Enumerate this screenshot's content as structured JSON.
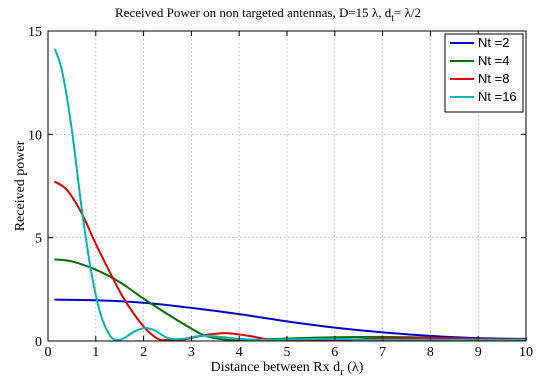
{
  "chart_data": {
    "type": "line",
    "title_main": "Received Power on non targeted antennas, D=15 λ, d",
    "title_sub": "t",
    "title_tail": "= λ/2",
    "xlabel_main": "Distance between Rx d",
    "xlabel_sub": "r",
    "xlabel_tail": " (λ)",
    "ylabel": "Received power",
    "xlim": [
      0,
      10
    ],
    "ylim": [
      0,
      15
    ],
    "xticks": [
      "0",
      "1",
      "2",
      "3",
      "4",
      "5",
      "6",
      "7",
      "8",
      "9",
      "10"
    ],
    "yticks": [
      "0",
      "5",
      "10",
      "15"
    ],
    "grid": true,
    "legend_position": "top-right",
    "series": [
      {
        "name": "Nt =2",
        "color": "#0000c8",
        "x": [
          0.15,
          1,
          2,
          3,
          4,
          5,
          6,
          7,
          8,
          9,
          10
        ],
        "y": [
          2.0,
          1.97,
          1.85,
          1.6,
          1.3,
          0.95,
          0.65,
          0.42,
          0.25,
          0.14,
          0.1
        ]
      },
      {
        "name": "Nt =4",
        "color": "#007000",
        "x": [
          0.15,
          0.5,
          1,
          1.5,
          2,
          2.5,
          3,
          3.3,
          3.8,
          4.5,
          5,
          6,
          7,
          8,
          9,
          10
        ],
        "y": [
          3.95,
          3.85,
          3.45,
          2.85,
          2.05,
          1.3,
          0.6,
          0.25,
          0.02,
          0.08,
          0.12,
          0.18,
          0.2,
          0.16,
          0.1,
          0.1
        ]
      },
      {
        "name": "Nt =8",
        "color": "#e00000",
        "x": [
          0.15,
          0.4,
          0.7,
          1,
          1.3,
          1.6,
          2,
          2.3,
          2.5,
          2.8,
          3.2,
          3.7,
          4.2,
          4.7,
          5.2,
          6,
          7,
          8,
          9,
          10
        ],
        "y": [
          7.7,
          7.3,
          6.2,
          4.7,
          3.3,
          2.0,
          0.7,
          0.1,
          0.0,
          0.05,
          0.25,
          0.38,
          0.25,
          0.05,
          0.0,
          0.05,
          0.12,
          0.15,
          0.1,
          0.08
        ]
      },
      {
        "name": "Nt =16",
        "color": "#00b4b4",
        "x": [
          0.15,
          0.3,
          0.5,
          0.7,
          0.9,
          1.1,
          1.3,
          1.45,
          1.6,
          1.8,
          2.0,
          2.2,
          2.5,
          2.8,
          3.2,
          3.6,
          4.0,
          4.5,
          5,
          6,
          7,
          8,
          9,
          10
        ],
        "y": [
          14.1,
          13.0,
          10.2,
          6.5,
          3.4,
          1.3,
          0.25,
          0.05,
          0.15,
          0.45,
          0.62,
          0.55,
          0.15,
          0.1,
          0.25,
          0.2,
          0.1,
          0.05,
          0.08,
          0.1,
          0.05,
          0.03,
          0.03,
          0.03
        ]
      }
    ]
  }
}
